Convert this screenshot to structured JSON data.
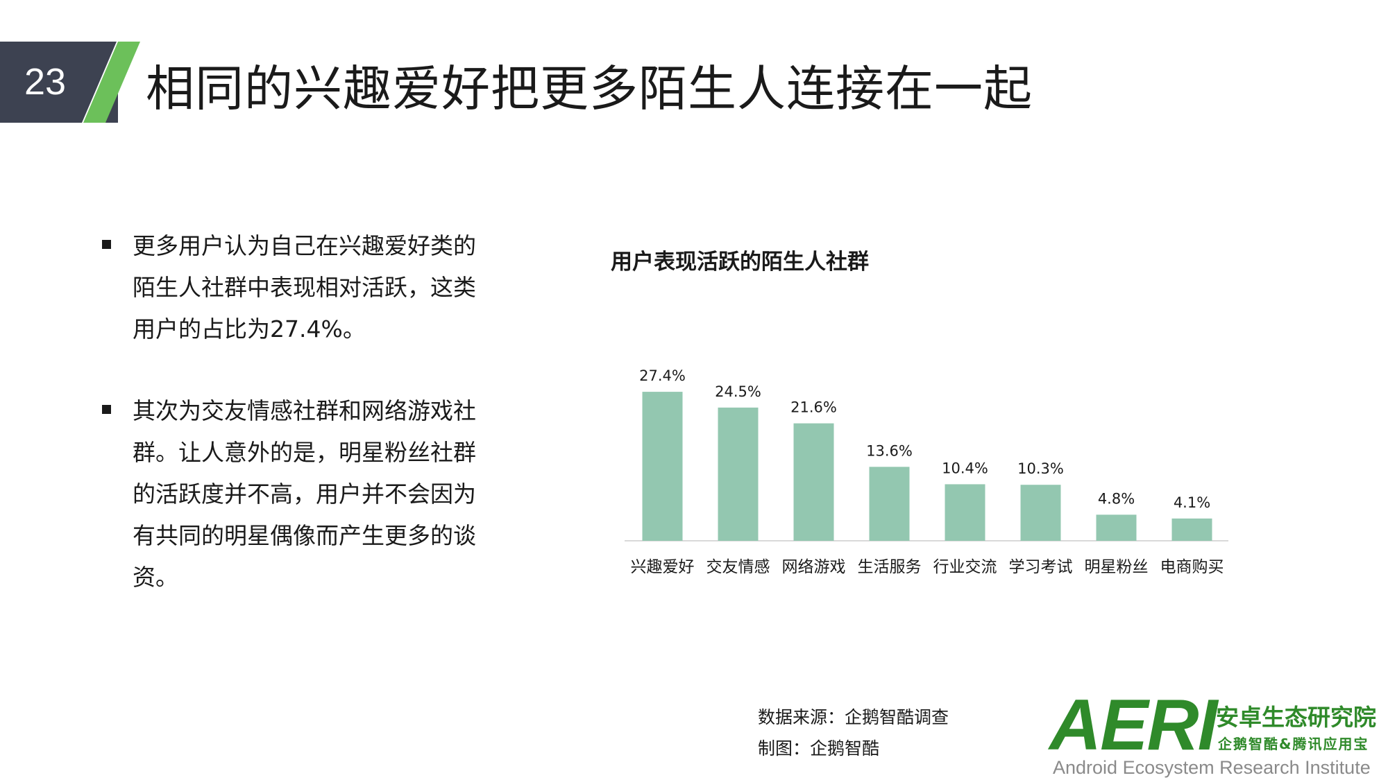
{
  "header": {
    "page_number": "23",
    "title": "相同的兴趣爱好把更多陌生人连接在一起",
    "colors": {
      "band": "#3d4251",
      "accent": "#6cc05a"
    }
  },
  "bullets": [
    {
      "text": "更多用户认为自己在兴趣爱好类的陌生人社群中表现相对活跃，这类用户的占比为27.4%。"
    },
    {
      "text": "其次为交友情感社群和网络游戏社群。让人意外的是，明星粉丝社群的活跃度并不高，用户并不会因为有共同的明星偶像而产生更多的谈资。"
    }
  ],
  "chart_data": {
    "type": "bar",
    "title": "用户表现活跃的陌生人社群",
    "categories": [
      "兴趣爱好",
      "交友情感",
      "网络游戏",
      "生活服务",
      "行业交流",
      "学习考试",
      "明星粉丝",
      "电商购买"
    ],
    "values": [
      27.4,
      24.5,
      21.6,
      13.6,
      10.4,
      10.3,
      4.8,
      4.1
    ],
    "value_labels": [
      "27.4%",
      "24.5%",
      "21.6%",
      "13.6%",
      "10.4%",
      "10.3%",
      "4.8%",
      "4.1%"
    ],
    "ylim": [
      0,
      30
    ],
    "grid": false,
    "legend": "none",
    "bar_color": "#93c7b0"
  },
  "source": {
    "line1": "数据来源：企鹅智酷调查",
    "line2": "制图：企鹅智酷"
  },
  "logo": {
    "mark": "AERI",
    "cn": "安卓生态研究院",
    "cn_sub": "企鹅智酷&腾讯应用宝",
    "en": "Android Ecosystem Research Institute"
  }
}
